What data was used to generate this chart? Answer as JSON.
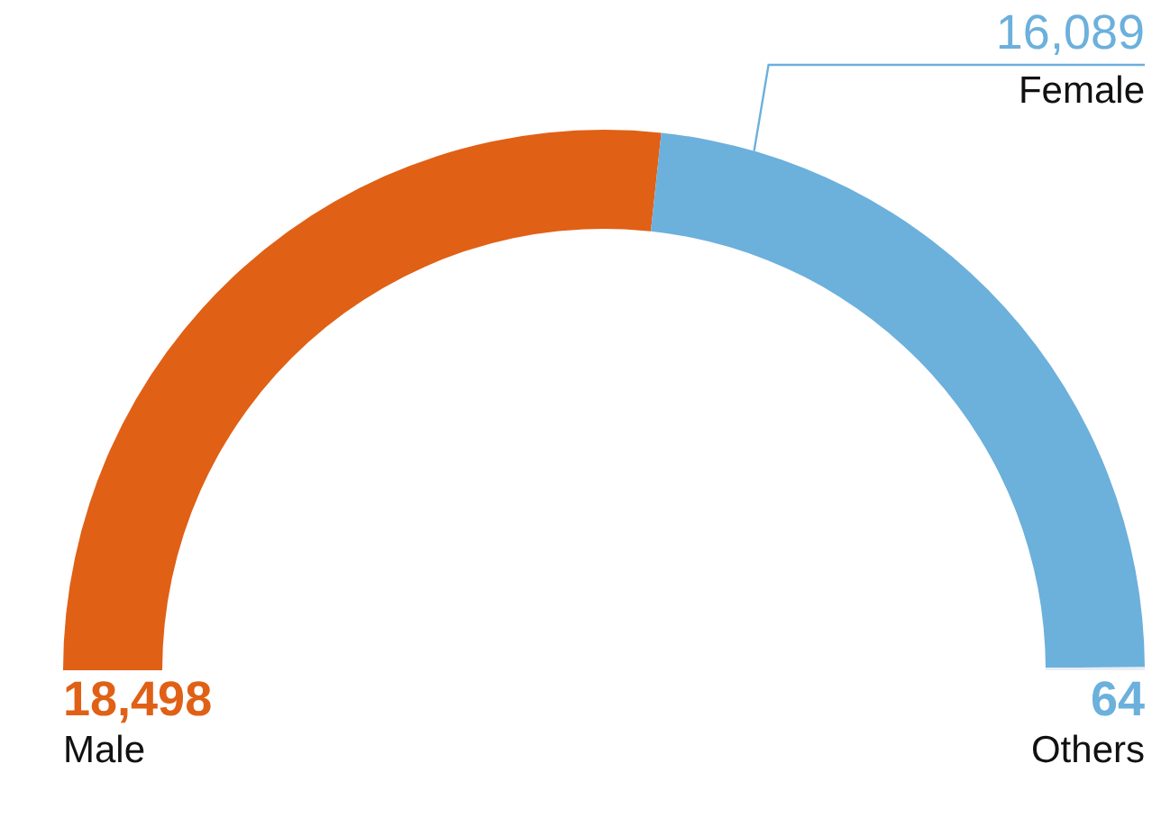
{
  "chart_data": {
    "type": "donut",
    "categories": [
      "Male",
      "Female",
      "Others"
    ],
    "values": [
      18498,
      16089,
      64
    ],
    "colors": [
      "#e06016",
      "#6cb0dc",
      "#e8eef4"
    ],
    "data_labels": true,
    "value_labels": [
      "18,498",
      "16,089",
      "64"
    ]
  }
}
